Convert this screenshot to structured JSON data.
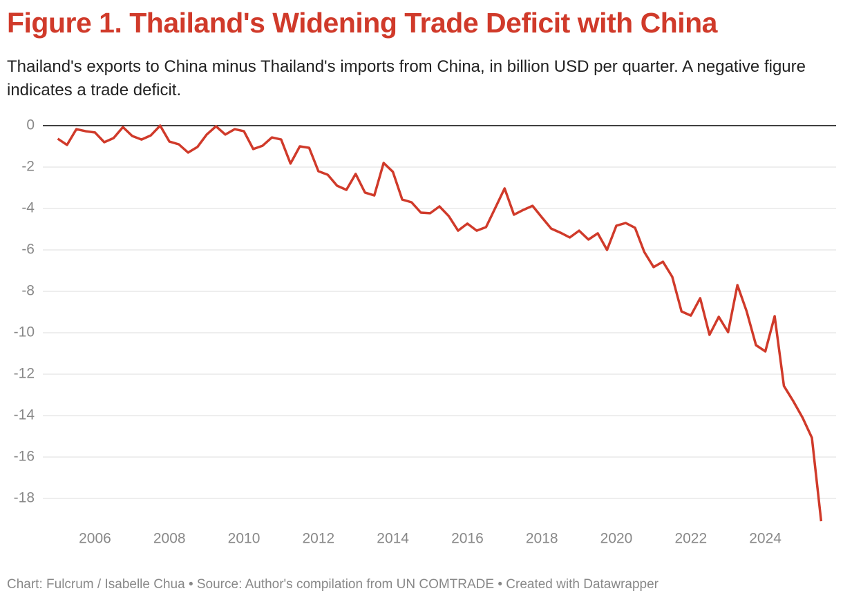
{
  "chart_data": {
    "type": "line",
    "title": "Figure 1. Thailand's Widening Trade Deficit with China",
    "subtitle": "Thailand's exports to China minus Thailand's imports from China, in billion USD per quarter. A negative figure indicates a trade deficit.",
    "footer": "Chart: Fulcrum / Isabelle Chua • Source: Author's compilation from UN COMTRADE • Created with Datawrapper",
    "x": [
      2005,
      2005.25,
      2005.5,
      2005.75,
      2006,
      2006.25,
      2006.5,
      2006.75,
      2007,
      2007.25,
      2007.5,
      2007.75,
      2008,
      2008.25,
      2008.5,
      2008.75,
      2009,
      2009.25,
      2009.5,
      2009.75,
      2010,
      2010.25,
      2010.5,
      2010.75,
      2011,
      2011.25,
      2011.5,
      2011.75,
      2012,
      2012.25,
      2012.5,
      2012.75,
      2013,
      2013.25,
      2013.5,
      2013.75,
      2014,
      2014.25,
      2014.5,
      2014.75,
      2015,
      2015.25,
      2015.5,
      2015.75,
      2016,
      2016.25,
      2016.5,
      2016.75,
      2017,
      2017.25,
      2017.5,
      2017.75,
      2018,
      2018.25,
      2018.5,
      2018.75,
      2019,
      2019.25,
      2019.5,
      2019.75,
      2020,
      2020.25,
      2020.5,
      2020.75,
      2021,
      2021.25,
      2021.5,
      2021.75,
      2022,
      2022.25,
      2022.5,
      2022.75,
      2023,
      2023.25,
      2023.5,
      2023.75,
      2024,
      2024.25,
      2024.5,
      2024.75,
      2025,
      2025.25,
      2025.5
    ],
    "series": [
      {
        "color": "#d03a2a",
        "values": [
          -0.63,
          -0.93,
          -0.17,
          -0.27,
          -0.33,
          -0.8,
          -0.6,
          -0.07,
          -0.5,
          -0.67,
          -0.47,
          0,
          -0.77,
          -0.9,
          -1.3,
          -1.03,
          -0.43,
          -0.03,
          -0.43,
          -0.17,
          -0.27,
          -1.13,
          -0.97,
          -0.57,
          -0.67,
          -1.83,
          -1.0,
          -1.07,
          -2.2,
          -2.37,
          -2.9,
          -3.1,
          -2.33,
          -3.23,
          -3.37,
          -1.8,
          -2.23,
          -3.57,
          -3.7,
          -4.2,
          -4.23,
          -3.9,
          -4.37,
          -5.07,
          -4.73,
          -5.07,
          -4.9,
          -3.97,
          -3.03,
          -4.3,
          -4.07,
          -3.87,
          -4.43,
          -4.97,
          -5.17,
          -5.4,
          -5.07,
          -5.5,
          -5.2,
          -6.0,
          -4.83,
          -4.7,
          -4.93,
          -6.1,
          -6.83,
          -6.57,
          -7.3,
          -8.97,
          -9.17,
          -8.33,
          -10.1,
          -9.23,
          -9.97,
          -7.7,
          -8.97,
          -10.6,
          -10.9,
          -9.2,
          -12.57,
          -13.3,
          -14.1,
          -15.07,
          -19.1
        ]
      }
    ],
    "xlim": [
      2004.6,
      2025.9
    ],
    "xticks": [
      2006,
      2008,
      2010,
      2012,
      2014,
      2016,
      2018,
      2020,
      2022,
      2024
    ],
    "ylim": [
      -19.2,
      0
    ],
    "yticks": [
      0,
      -2,
      -4,
      -6,
      -8,
      -10,
      -12,
      -14,
      -16,
      -18
    ],
    "grid": true
  }
}
